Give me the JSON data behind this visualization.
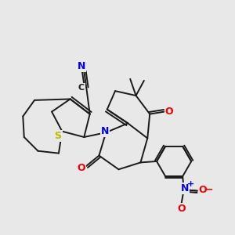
{
  "bg_color": "#e8e8e8",
  "bond_color": "#1a1a1a",
  "bond_width": 1.4,
  "atom_colors": {
    "N": "#0000ee",
    "O": "#ee0000",
    "S": "#bbbb00",
    "C": "#1a1a1a"
  }
}
